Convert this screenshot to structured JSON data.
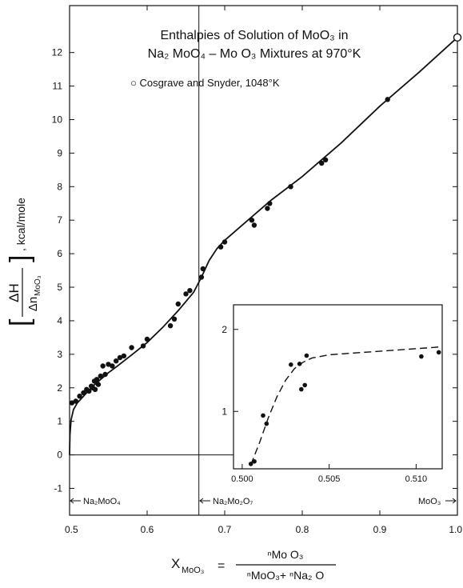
{
  "chart_data": [
    {
      "type": "scatter",
      "title_line1": "Enthalpies of Solution of MoO₃ in",
      "title_line2": "Na₂ MoO₄ – Mo O₃ Mixtures at 970°K",
      "legend_open_circle": "○ Cosgrave and Snyder, 1048°K",
      "ylabel_frac_top": "ΔH",
      "ylabel_frac_bottom": "Δn",
      "ylabel_frac_sub": "MoO₃",
      "ylabel_unit": ", kcal/mole",
      "xlabel_symbol": "X",
      "xlabel_sub": "MoO₃",
      "xlabel_equals": "=",
      "xlabel_numerator": "ⁿMo O₃",
      "xlabel_denominator": "ⁿMoO₃+ ⁿNa₂ O",
      "x_ticks": [
        "0.5",
        "0.6",
        "0.7",
        "0.8",
        "0.9",
        "1.0"
      ],
      "y_ticks": [
        "-1",
        "0",
        "1",
        "2",
        "3",
        "4",
        "5",
        "6",
        "7",
        "8",
        "9",
        "10",
        "11",
        "12"
      ],
      "xlim": [
        0.5,
        1.0
      ],
      "ylim": [
        -1.8,
        13.4
      ],
      "compound_left": "Na₂MoO₄",
      "compound_mid": "Na₂Mo₂O₇",
      "compound_right": "MoO₃",
      "vertical_line_x": 0.6667,
      "curve": {
        "x": [
          0.5,
          0.5005,
          0.502,
          0.505,
          0.51,
          0.52,
          0.53,
          0.54,
          0.55,
          0.56,
          0.58,
          0.6,
          0.62,
          0.64,
          0.66,
          0.67,
          0.68,
          0.69,
          0.7,
          0.72,
          0.74,
          0.76,
          0.8,
          0.85,
          0.9,
          0.95,
          1.0
        ],
        "y": [
          0.0,
          0.6,
          1.05,
          1.35,
          1.55,
          1.8,
          2.05,
          2.25,
          2.45,
          2.62,
          2.98,
          3.35,
          3.8,
          4.3,
          4.85,
          5.3,
          5.8,
          6.15,
          6.4,
          6.8,
          7.2,
          7.6,
          8.3,
          9.3,
          10.4,
          11.4,
          12.45
        ]
      },
      "points": {
        "x": [
          0.503,
          0.508,
          0.513,
          0.518,
          0.522,
          0.525,
          0.528,
          0.53,
          0.532,
          0.533,
          0.535,
          0.537,
          0.54,
          0.543,
          0.546,
          0.55,
          0.555,
          0.56,
          0.565,
          0.57,
          0.58,
          0.595,
          0.6,
          0.63,
          0.635,
          0.64,
          0.65,
          0.655,
          0.67,
          0.672,
          0.695,
          0.7,
          0.735,
          0.738,
          0.755,
          0.758,
          0.785,
          0.825,
          0.83,
          0.91
        ],
        "y": [
          1.55,
          1.6,
          1.75,
          1.85,
          1.95,
          1.9,
          2.05,
          2.0,
          2.2,
          1.95,
          2.25,
          2.1,
          2.35,
          2.65,
          2.4,
          2.7,
          2.65,
          2.8,
          2.9,
          2.95,
          3.2,
          3.25,
          3.45,
          3.85,
          4.05,
          4.5,
          4.8,
          4.9,
          5.3,
          5.55,
          6.2,
          6.35,
          7.0,
          6.85,
          7.35,
          7.5,
          8.0,
          8.7,
          8.8,
          10.6
        ],
        "open_point": {
          "x": 1.0,
          "y": 12.45
        }
      }
    },
    {
      "type": "scatter",
      "x_ticks": [
        "0.500",
        "0.505",
        "0.510"
      ],
      "y_ticks": [
        "1",
        "2"
      ],
      "xlim": [
        0.4995,
        0.5115
      ],
      "ylim": [
        0.3,
        2.3
      ],
      "dashed_curve": {
        "x": [
          0.5005,
          0.501,
          0.5015,
          0.502,
          0.5025,
          0.503,
          0.5035,
          0.504,
          0.5045,
          0.505,
          0.507,
          0.509,
          0.511,
          0.5115
        ],
        "y": [
          0.35,
          0.62,
          0.92,
          1.18,
          1.38,
          1.52,
          1.6,
          1.65,
          1.67,
          1.69,
          1.72,
          1.75,
          1.78,
          1.79
        ]
      },
      "points": {
        "x": [
          0.5005,
          0.5007,
          0.5012,
          0.5014,
          0.5028,
          0.5033,
          0.5034,
          0.5036,
          0.5037,
          0.5103,
          0.5113
        ],
        "y": [
          0.36,
          0.39,
          0.95,
          0.85,
          1.57,
          1.58,
          1.27,
          1.32,
          1.68,
          1.67,
          1.72
        ]
      }
    }
  ]
}
